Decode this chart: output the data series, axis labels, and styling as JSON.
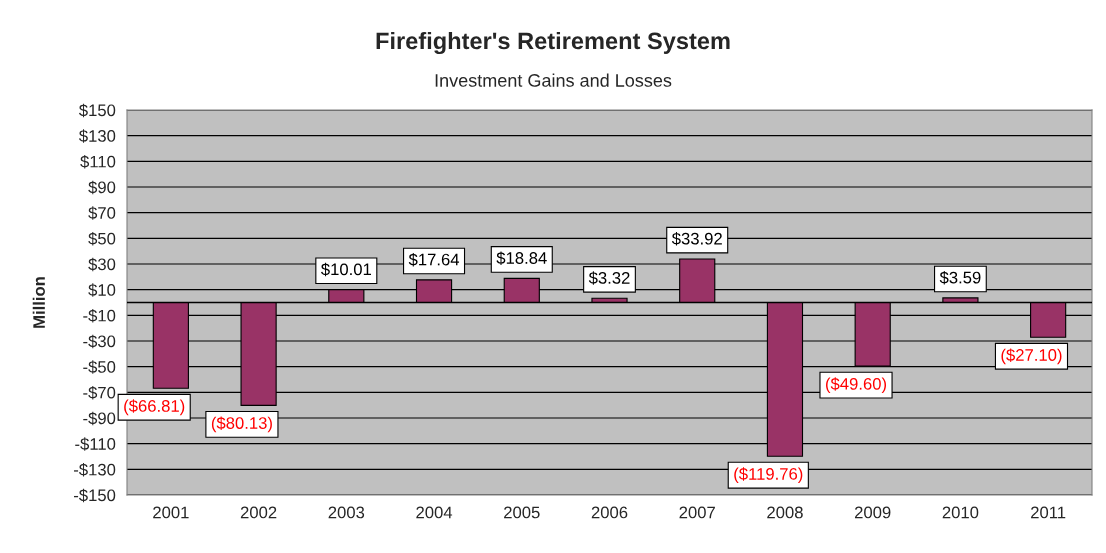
{
  "chart_data": {
    "type": "bar",
    "title": "Firefighter's Retirement System",
    "subtitle": "Investment Gains and Losses",
    "ylabel": "Million",
    "categories": [
      "2001",
      "2002",
      "2003",
      "2004",
      "2005",
      "2006",
      "2007",
      "2008",
      "2009",
      "2010",
      "2011"
    ],
    "values": [
      -66.81,
      -80.13,
      10.01,
      17.64,
      18.84,
      3.32,
      33.92,
      -119.76,
      -49.6,
      3.59,
      -27.1
    ],
    "color": "#993366",
    "value_labels": [
      "($66.81)",
      "($80.13)",
      "$10.01",
      "$17.64",
      "$18.84",
      "$3.32",
      "$33.92",
      "($119.76)",
      "($49.60)",
      "$3.59",
      "($27.10)"
    ],
    "ylim": [
      -150,
      150
    ],
    "yticks": [
      {
        "value": 150,
        "label": "$150"
      },
      {
        "value": 130,
        "label": "$130"
      },
      {
        "value": 110,
        "label": "$110"
      },
      {
        "value": 90,
        "label": "$90"
      },
      {
        "value": 70,
        "label": "$70"
      },
      {
        "value": 50,
        "label": "$50"
      },
      {
        "value": 30,
        "label": "$30"
      },
      {
        "value": 10,
        "label": "$10"
      },
      {
        "value": -10,
        "label": "-$10"
      },
      {
        "value": -30,
        "label": "-$30"
      },
      {
        "value": -50,
        "label": "-$50"
      },
      {
        "value": -70,
        "label": "-$70"
      },
      {
        "value": -90,
        "label": "-$90"
      },
      {
        "value": -110,
        "label": "-$110"
      },
      {
        "value": -130,
        "label": "-$130"
      },
      {
        "value": -150,
        "label": "-$150"
      }
    ],
    "grid": "y",
    "legend": false
  }
}
